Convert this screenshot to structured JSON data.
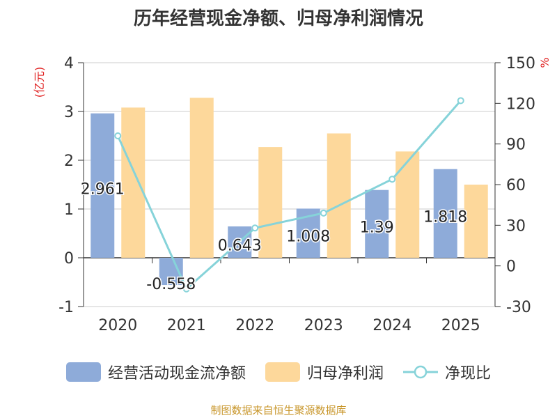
{
  "title": "历年经营现金净额、归母净利润情况",
  "footer": "制图数据来自恒生聚源数据库",
  "colors": {
    "cash_flow": "#8eabd9",
    "net_profit": "#fdd89b",
    "ratio": "#86d3d9",
    "axis_label": "#e02020"
  },
  "chart_data": {
    "type": "bar",
    "categories": [
      "2020",
      "2021",
      "2022",
      "2023",
      "2024",
      "2025"
    ],
    "series": [
      {
        "name": "经营活动现金流净额",
        "type": "bar",
        "axis": "left",
        "values": [
          2.961,
          -0.558,
          0.643,
          1.008,
          1.39,
          1.818
        ],
        "labels": [
          "2.961",
          "-0.558",
          "0.643",
          "1.008",
          "1.39",
          "1.818"
        ]
      },
      {
        "name": "归母净利润",
        "type": "bar",
        "axis": "left",
        "values": [
          3.08,
          3.28,
          2.27,
          2.55,
          2.18,
          1.5
        ]
      },
      {
        "name": "净现比",
        "type": "line",
        "axis": "right",
        "values": [
          96,
          -17,
          28,
          39,
          64,
          122
        ]
      }
    ],
    "left_axis": {
      "label": "(亿元)",
      "min": -1,
      "max": 4,
      "ticks": [
        -1,
        0,
        1,
        2,
        3,
        4
      ]
    },
    "right_axis": {
      "label": "%",
      "min": -30,
      "max": 150,
      "ticks": [
        -30,
        0,
        30,
        60,
        90,
        120,
        150
      ]
    },
    "grid": true,
    "legend": "bottom"
  }
}
